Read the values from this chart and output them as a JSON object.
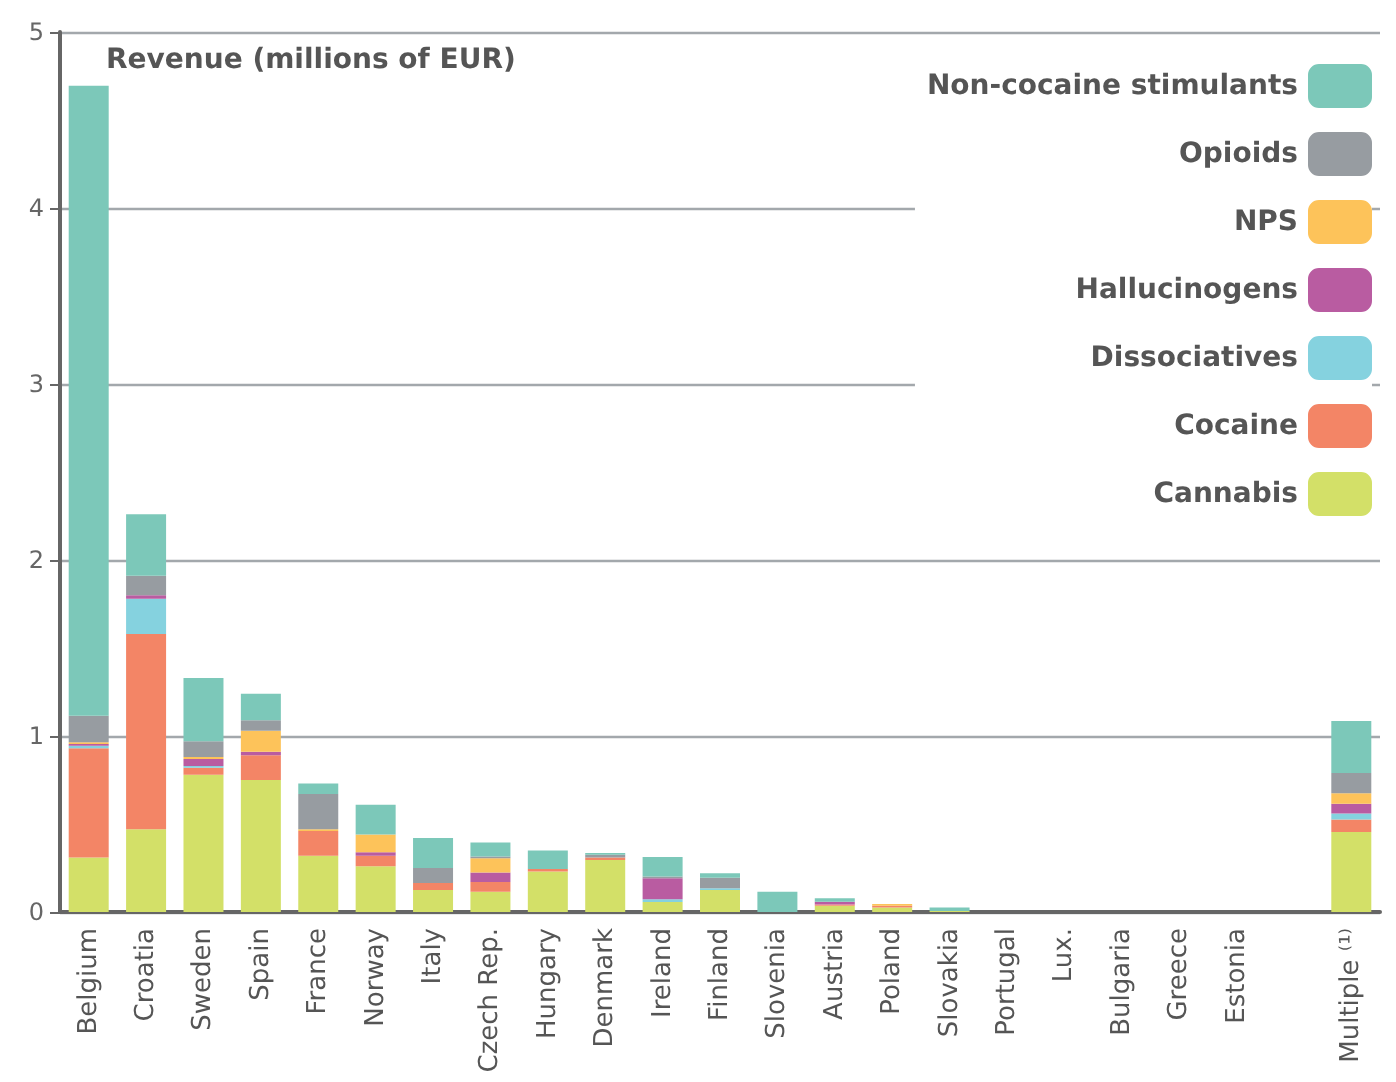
{
  "chart_data": {
    "type": "bar",
    "stacked": true,
    "ylabel": "Revenue (millions of EUR)",
    "categories": [
      "Belgium",
      "Croatia",
      "Sweden",
      "Spain",
      "France",
      "Norway",
      "Italy",
      "Czech Rep.",
      "Hungary",
      "Denmark",
      "Ireland",
      "Finland",
      "Slovenia",
      "Austria",
      "Poland",
      "Slovakia",
      "Portugal",
      "Lux.",
      "Bulgaria",
      "Greece",
      "Estonia",
      null,
      "Multiple ⁽¹⁾"
    ],
    "series": [
      {
        "name": "Cannabis",
        "color": "#d3e068",
        "values": [
          0.31,
          0.47,
          0.78,
          0.75,
          0.32,
          0.26,
          0.125,
          0.115,
          0.23,
          0.295,
          0.057,
          0.125,
          0,
          0.035,
          0.025,
          0.005,
          0,
          0,
          0,
          0,
          0,
          null,
          0.455
        ]
      },
      {
        "name": "Cocaine",
        "color": "#f38566",
        "values": [
          0.62,
          1.11,
          0.04,
          0.14,
          0.14,
          0.06,
          0.04,
          0.055,
          0.015,
          0.015,
          0,
          0,
          0,
          0.008,
          0.01,
          0,
          0,
          0,
          0,
          0,
          0,
          null,
          0.07
        ]
      },
      {
        "name": "Dissociatives",
        "color": "#85d2df",
        "values": [
          0.015,
          0.2,
          0.01,
          0,
          0,
          0,
          0,
          0,
          0,
          0,
          0.015,
          0.01,
          0,
          0,
          0,
          0,
          0,
          0,
          0,
          0,
          0,
          null,
          0.035
        ]
      },
      {
        "name": "Hallucinogens",
        "color": "#b95ca1",
        "values": [
          0.01,
          0.02,
          0.04,
          0.02,
          0,
          0.02,
          0,
          0.055,
          0,
          0,
          0.12,
          0,
          0,
          0.015,
          0,
          0,
          0,
          0,
          0,
          0,
          0,
          null,
          0.055
        ]
      },
      {
        "name": "NPS",
        "color": "#fdc35a",
        "values": [
          0.01,
          0,
          0.01,
          0.12,
          0.01,
          0.1,
          0,
          0.08,
          0,
          0,
          0,
          0,
          0,
          0,
          0.01,
          0,
          0,
          0,
          0,
          0,
          0,
          null,
          0.06
        ]
      },
      {
        "name": "Opioids",
        "color": "#979ca1",
        "values": [
          0.15,
          0.11,
          0.09,
          0.06,
          0.2,
          0,
          0.085,
          0.01,
          0,
          0.015,
          0.01,
          0.06,
          0,
          0,
          0,
          0,
          0,
          0,
          0,
          0,
          0,
          null,
          0.115
        ]
      },
      {
        "name": "Non-cocaine stimulants",
        "color": "#7cc8b9",
        "values": [
          3.58,
          0.35,
          0.36,
          0.15,
          0.06,
          0.17,
          0.17,
          0.08,
          0.105,
          0.01,
          0.11,
          0.025,
          0.115,
          0.02,
          0,
          0.02,
          0,
          0,
          0,
          0,
          0,
          null,
          0.295
        ]
      }
    ],
    "ylim": [
      0,
      5
    ],
    "yticks": [
      0,
      1,
      2,
      3,
      4,
      5
    ],
    "grid": "y",
    "legend": "top right"
  }
}
